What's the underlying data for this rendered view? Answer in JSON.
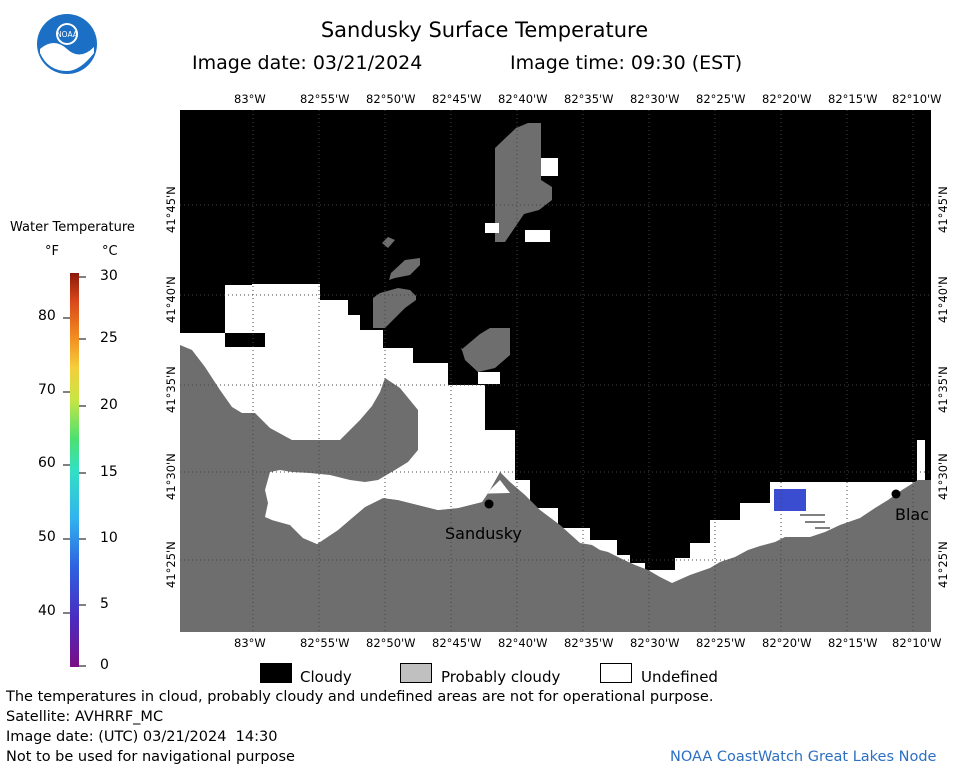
{
  "header": {
    "title": "Sandusky Surface Temperature",
    "image_date": "Image date: 03/21/2024",
    "image_time": "Image time: 09:30 (EST)"
  },
  "logo": {
    "text": "NOAA"
  },
  "longitude_ticks": [
    "83°W",
    "82°55'W",
    "82°50'W",
    "82°45'W",
    "82°40'W",
    "82°35'W",
    "82°30'W",
    "82°25'W",
    "82°20'W",
    "82°15'W",
    "82°10'W"
  ],
  "latitude_ticks": [
    "41°45'N",
    "41°40'N",
    "41°35'N",
    "41°30'N",
    "41°25'N"
  ],
  "colorbar": {
    "title": "Water Temperature",
    "unit_f": "°F",
    "unit_c": "°C",
    "f_ticks": [
      "80",
      "70",
      "60",
      "50",
      "40"
    ],
    "c_ticks": [
      "30",
      "25",
      "20",
      "15",
      "10",
      "5",
      "0"
    ]
  },
  "places": {
    "sandusky": "Sandusky",
    "blac": "Blac"
  },
  "legend": {
    "cloudy": "Cloudy",
    "probably_cloudy": "Probably cloudy",
    "undefined": "Undefined"
  },
  "footer": {
    "disclaimer": "The temperatures in cloud, probably cloudy and undefined areas are not for operational purpose.",
    "satellite": "Satellite: AVHRRF_MC",
    "utc_date": "Image date: (UTC) 03/21/2024  14:30",
    "nav_warning": "Not to be used for navigational purpose",
    "credit": "NOAA CoastWatch Great Lakes Node"
  },
  "colors": {
    "cloudy": "#000000",
    "land": "#6e6e6e",
    "undefined": "#ffffff",
    "probably_cloudy": "#c0c0c0",
    "water_sample": "#3a4ccf"
  }
}
